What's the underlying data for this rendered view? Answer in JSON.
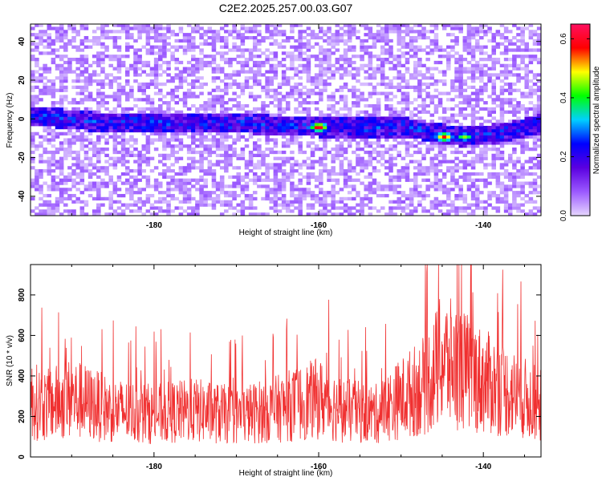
{
  "title": "C2E2.2025.257.00.03.G07",
  "chart_data": [
    {
      "type": "heatmap",
      "name": "spectrogram",
      "xlabel": "Height of straight line (km)",
      "ylabel": "Frequency (Hz)",
      "xlim": [
        -195,
        -133
      ],
      "ylim": [
        -50,
        49
      ],
      "xticks": [
        -180,
        -160,
        -140
      ],
      "yticks": [
        -40,
        -20,
        0,
        20,
        40
      ],
      "colorbar": {
        "label": "Normalized spectral amplitude",
        "range": [
          0.0,
          0.65
        ],
        "ticks": [
          0.0,
          0.2,
          0.4,
          0.6
        ],
        "colormap": [
          "#e6d6ff",
          "#9b59ff",
          "#5a00e0",
          "#0000ff",
          "#00d0ff",
          "#00ff00",
          "#ffff00",
          "#ff0000",
          "#ff1060"
        ]
      },
      "band": {
        "center_frequency_hz": [
          [
            -195,
            1
          ],
          [
            -185,
            -3
          ],
          [
            -170,
            -3
          ],
          [
            -160,
            -5
          ],
          [
            -150,
            -5
          ],
          [
            -143,
            -10
          ],
          [
            -138,
            -8
          ],
          [
            -133,
            -3
          ]
        ]
      },
      "hotspots": [
        {
          "x": -160.2,
          "y": -5,
          "amplitude": 0.62
        },
        {
          "x": -145.0,
          "y": -10,
          "amplitude": 0.58
        },
        {
          "x": -142.5,
          "y": -10,
          "amplitude": 0.45
        }
      ]
    },
    {
      "type": "line",
      "name": "snr",
      "xlabel": "Height of straight line (km)",
      "ylabel": "SNR (10 * v/v)",
      "xlim": [
        -195,
        -133
      ],
      "ylim": [
        0,
        950
      ],
      "xticks": [
        -180,
        -160,
        -140
      ],
      "yticks": [
        0,
        200,
        400,
        600,
        800
      ],
      "color": "#f03030",
      "series": [
        {
          "name": "SNR",
          "envelope": [
            [
              -195,
              330
            ],
            [
              -193,
              300
            ],
            [
              -190,
              340
            ],
            [
              -185,
              270
            ],
            [
              -180,
              250
            ],
            [
              -175,
              270
            ],
            [
              -170,
              240
            ],
            [
              -165,
              280
            ],
            [
              -160,
              340
            ],
            [
              -157,
              270
            ],
            [
              -153,
              250
            ],
            [
              -150,
              340
            ],
            [
              -147,
              420
            ],
            [
              -145,
              560
            ],
            [
              -143,
              520
            ],
            [
              -140,
              440
            ],
            [
              -137,
              380
            ],
            [
              -135,
              340
            ],
            [
              -133,
              300
            ]
          ]
        }
      ]
    }
  ]
}
